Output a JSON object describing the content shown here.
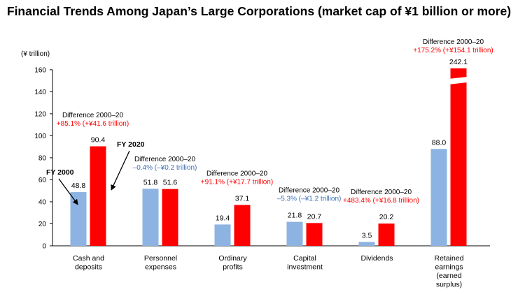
{
  "chart_data": {
    "type": "bar",
    "title": "Financial Trends Among Japan’s Large Corporations (market cap of ¥1 billion or more)",
    "ylabel": "(¥ trillion)",
    "ylim": [
      0,
      160
    ],
    "yticks": [
      "0",
      "20",
      "40",
      "60",
      "80",
      "100",
      "120",
      "140",
      "160"
    ],
    "grid": false,
    "colors": {
      "FY 2000": "#8db3e2",
      "FY 2020": "#ff0000",
      "negative_diff": "#3b6fb6",
      "axis": "#000000"
    },
    "categories": [
      [
        "Cash and",
        "deposits"
      ],
      [
        "Personnel",
        "expenses"
      ],
      [
        "Ordinary",
        "profits"
      ],
      [
        "Capital",
        "investment"
      ],
      [
        "Dividends"
      ],
      [
        "Retained",
        "earnings",
        "(earned",
        "surplus)"
      ]
    ],
    "series": [
      {
        "name": "FY 2000",
        "values": [
          48.8,
          51.8,
          19.4,
          21.8,
          3.5,
          88.0
        ],
        "labels": [
          "48.8",
          "51.8",
          "19.4",
          "21.8",
          "3.5",
          "88.0"
        ]
      },
      {
        "name": "FY 2020",
        "values": [
          90.4,
          51.6,
          37.1,
          20.7,
          20.2,
          242.1
        ],
        "labels": [
          "90.4",
          "51.6",
          "37.1",
          "20.7",
          "20.2",
          "242.1"
        ]
      }
    ],
    "axis_break": {
      "category_index": 5,
      "series": "FY 2020"
    },
    "differences": [
      {
        "heading": "Difference 2000–20",
        "text": "+85.1% (+¥41.6 trillion)",
        "direction": "up"
      },
      {
        "heading": "Difference 2000–20",
        "text": "–0.4% (–¥0.2 trillion)",
        "direction": "down"
      },
      {
        "heading": "Difference 2000–20",
        "text": "+91.1% (+¥17.7 trillion)",
        "direction": "up"
      },
      {
        "heading": "Difference 2000–20",
        "text": "–5.3% (–¥1.2 trillion)",
        "direction": "down"
      },
      {
        "heading": "Difference 2000–20",
        "text": "+483.4% (+¥16.8 trillion)",
        "direction": "up"
      },
      {
        "heading": "Difference 2000–20",
        "text": "+175.2% (+¥154.1 trillion)",
        "direction": "up"
      }
    ],
    "annotations": {
      "fy2000": "FY 2000",
      "fy2020": "FY 2020"
    }
  }
}
